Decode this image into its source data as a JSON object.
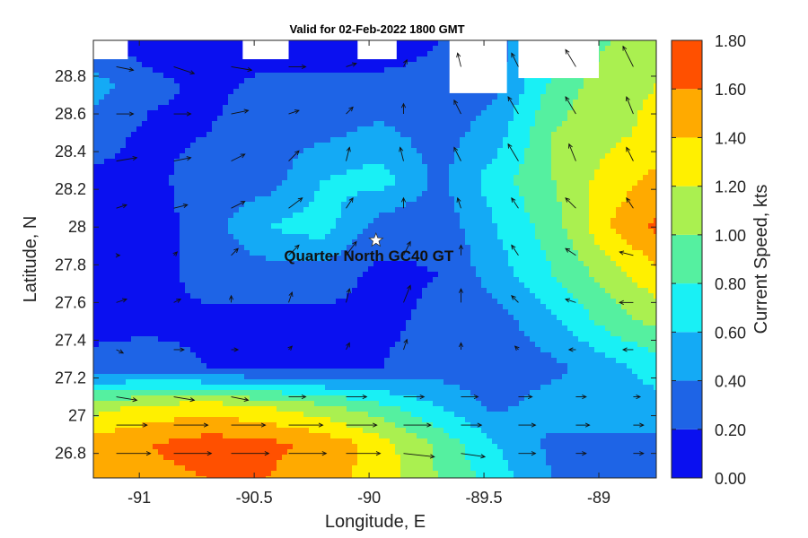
{
  "chart_data": {
    "type": "heatmap",
    "title": "Valid for 02-Feb-2022 1800 GMT",
    "xlabel": "Longitude, E",
    "ylabel": "Latitude, N",
    "colorbar_label": "Current Speed, kts",
    "xlim": [
      -91.2,
      -88.75
    ],
    "ylim": [
      26.67,
      28.99
    ],
    "x_ticks": [
      -91,
      -90.5,
      -90,
      -89.5,
      -89
    ],
    "x_tick_labels": [
      "-91",
      "-90.5",
      "-90",
      "-89.5",
      "-89"
    ],
    "y_ticks": [
      26.8,
      27,
      27.2,
      27.4,
      27.6,
      27.8,
      28,
      28.2,
      28.4,
      28.6,
      28.8
    ],
    "y_tick_labels": [
      "26.8",
      "27",
      "27.2",
      "27.4",
      "27.6",
      "27.8",
      "28",
      "28.2",
      "28.4",
      "28.6",
      "28.8"
    ],
    "colorbar": {
      "levels": [
        0,
        0.2,
        0.4,
        0.6,
        0.8,
        1.0,
        1.2,
        1.4,
        1.6,
        1.8
      ],
      "tick_labels": [
        "0.00",
        "0.20",
        "0.40",
        "0.60",
        "0.80",
        "1.00",
        "1.20",
        "1.40",
        "1.60",
        "1.80"
      ],
      "colors": [
        "#0a10f0",
        "#1e64e6",
        "#14aaf5",
        "#19f0f5",
        "#55f0a0",
        "#aaf050",
        "#fff000",
        "#ffaa00",
        "#ff5000"
      ]
    },
    "annotation": {
      "text": "Quarter North GC40 GT",
      "marker": "star",
      "lon": -89.97,
      "lat": 27.93
    },
    "speed_field": {
      "lons": [
        -91.2,
        -90.95,
        -90.7,
        -90.45,
        -90.2,
        -89.95,
        -89.7,
        -89.45,
        -89.2,
        -88.95,
        -88.75
      ],
      "lats": [
        28.99,
        28.75,
        28.5,
        28.25,
        28.0,
        27.75,
        27.5,
        27.25,
        27.05,
        26.85,
        26.67
      ],
      "values": [
        [
          0.15,
          0.1,
          0.1,
          0.1,
          0.1,
          0.1,
          0.2,
          0.3,
          0.7,
          1.0,
          1.05
        ],
        [
          0.5,
          0.25,
          0.15,
          0.25,
          0.25,
          0.25,
          0.25,
          0.35,
          0.85,
          1.15,
          1.2
        ],
        [
          0.3,
          0.15,
          0.2,
          0.3,
          0.35,
          0.45,
          0.3,
          0.5,
          1.0,
          1.15,
          1.25
        ],
        [
          0.15,
          0.15,
          0.3,
          0.3,
          0.6,
          0.7,
          0.35,
          0.7,
          1.0,
          1.3,
          1.45
        ],
        [
          0.1,
          0.1,
          0.3,
          0.6,
          0.7,
          0.3,
          0.25,
          0.6,
          0.9,
          1.4,
          1.65
        ],
        [
          0.1,
          0.1,
          0.3,
          0.3,
          0.3,
          0.15,
          0.2,
          0.5,
          0.8,
          1.1,
          1.35
        ],
        [
          0.15,
          0.15,
          0.15,
          0.15,
          0.15,
          0.15,
          0.25,
          0.3,
          0.55,
          0.9,
          1.05
        ],
        [
          0.25,
          0.3,
          0.2,
          0.15,
          0.15,
          0.2,
          0.3,
          0.3,
          0.35,
          0.5,
          0.7
        ],
        [
          1.1,
          1.25,
          1.3,
          1.2,
          1.05,
          0.85,
          0.6,
          0.35,
          0.5,
          0.6,
          0.5
        ],
        [
          1.5,
          1.6,
          1.7,
          1.65,
          1.55,
          1.3,
          0.95,
          0.6,
          0.35,
          0.3,
          0.35
        ],
        [
          1.5,
          1.55,
          1.6,
          1.6,
          1.5,
          1.3,
          1.0,
          0.7,
          0.4,
          0.3,
          0.3
        ]
      ]
    },
    "vector_field": {
      "lons": [
        -91.1,
        -90.85,
        -90.6,
        -90.35,
        -90.1,
        -89.85,
        -89.6,
        -89.35,
        -89.1,
        -88.85
      ],
      "lats": [
        28.85,
        28.6,
        28.35,
        28.1,
        27.85,
        27.6,
        27.35,
        27.1,
        26.95,
        26.8
      ],
      "u": [
        [
          0.5,
          0.6,
          0.6,
          0.5,
          0.3,
          0.1,
          -0.1,
          -0.2,
          -0.3,
          -0.3
        ],
        [
          0.5,
          0.5,
          0.5,
          0.3,
          0.2,
          0.0,
          -0.2,
          -0.3,
          -0.3,
          -0.2
        ],
        [
          0.6,
          0.5,
          0.4,
          0.3,
          0.1,
          -0.1,
          -0.2,
          -0.3,
          -0.2,
          -0.2
        ],
        [
          0.3,
          0.4,
          0.4,
          0.4,
          0.2,
          0.0,
          -0.1,
          -0.2,
          -0.3,
          -0.2
        ],
        [
          0.1,
          0.1,
          0.2,
          0.3,
          0.3,
          0.2,
          0.0,
          -0.2,
          -0.3,
          -0.4
        ],
        [
          0.3,
          0.2,
          0.0,
          0.1,
          0.1,
          0.2,
          0.0,
          -0.2,
          -0.3,
          -0.4
        ],
        [
          0.2,
          0.3,
          0.2,
          0.1,
          0.1,
          0.1,
          0.0,
          -0.1,
          -0.2,
          -0.3
        ],
        [
          0.6,
          0.6,
          0.5,
          0.5,
          0.6,
          0.6,
          0.5,
          0.4,
          0.3,
          0.2
        ],
        [
          0.9,
          1.0,
          1.0,
          1.0,
          0.9,
          0.8,
          0.6,
          0.5,
          0.4,
          0.3
        ],
        [
          1.0,
          1.1,
          1.1,
          1.1,
          1.0,
          0.9,
          0.7,
          0.5,
          0.3,
          0.3
        ]
      ],
      "v": [
        [
          -0.1,
          -0.2,
          -0.1,
          0.0,
          0.1,
          0.2,
          0.4,
          0.4,
          0.5,
          0.6
        ],
        [
          0.0,
          0.0,
          0.1,
          0.1,
          0.2,
          0.3,
          0.4,
          0.5,
          0.5,
          0.5
        ],
        [
          0.1,
          0.1,
          0.2,
          0.3,
          0.4,
          0.4,
          0.4,
          0.5,
          0.5,
          0.4
        ],
        [
          0.1,
          0.1,
          0.2,
          0.3,
          0.3,
          0.3,
          0.3,
          0.3,
          0.3,
          0.3
        ],
        [
          0.0,
          0.1,
          0.2,
          0.3,
          0.4,
          0.4,
          0.3,
          0.3,
          0.2,
          0.1
        ],
        [
          0.1,
          0.1,
          0.2,
          0.3,
          0.4,
          0.5,
          0.4,
          0.2,
          0.1,
          0.0
        ],
        [
          -0.1,
          0.0,
          0.0,
          0.1,
          0.2,
          0.3,
          0.2,
          0.1,
          0.0,
          0.0
        ],
        [
          -0.1,
          -0.1,
          -0.1,
          0.0,
          0.0,
          0.0,
          0.0,
          0.0,
          0.0,
          0.0
        ],
        [
          0.0,
          0.0,
          0.0,
          0.0,
          0.0,
          0.0,
          0.0,
          0.0,
          0.0,
          0.0
        ],
        [
          0.0,
          0.0,
          0.0,
          0.0,
          0.0,
          -0.1,
          -0.1,
          0.0,
          0.0,
          0.0
        ]
      ]
    },
    "no_data_regions": [
      {
        "lon": [
          -91.2,
          -91.05
        ],
        "lat": [
          28.89,
          28.99
        ]
      },
      {
        "lon": [
          -90.55,
          -90.35
        ],
        "lat": [
          28.89,
          28.99
        ]
      },
      {
        "lon": [
          -90.05,
          -89.88
        ],
        "lat": [
          28.89,
          28.99
        ]
      },
      {
        "lon": [
          -89.65,
          -89.4
        ],
        "lat": [
          28.71,
          28.99
        ]
      },
      {
        "lon": [
          -89.35,
          -89.0
        ],
        "lat": [
          28.79,
          28.99
        ]
      }
    ],
    "grid": false
  }
}
